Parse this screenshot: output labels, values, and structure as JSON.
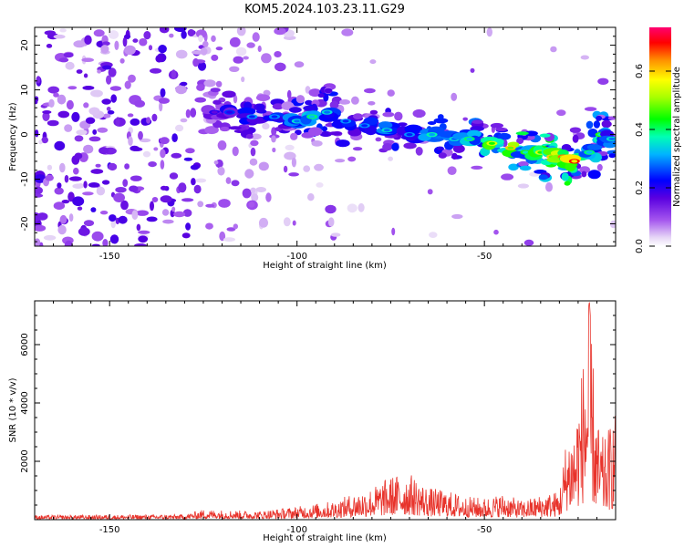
{
  "title": "KOM5.2024.103.23.11.G29",
  "colors": {
    "snr_line": "#e8332b",
    "frame": "#000000"
  },
  "chart_data": [
    {
      "type": "heatmap",
      "xlabel": "Height of straight line (km)",
      "ylabel": "Frequency (Hz)",
      "xlim": [
        -170,
        -15
      ],
      "ylim": [
        -25,
        24
      ],
      "xticks": [
        -150,
        -100,
        -50
      ],
      "yticks": [
        -20,
        -10,
        0,
        10,
        20
      ],
      "colorbar": {
        "label": "Normalized spectral amplitude",
        "range": [
          0,
          0.75
        ],
        "ticks": [
          0.0,
          0.2,
          0.4,
          0.6
        ],
        "colormap": "rainbow (white-violet-blue-cyan-green-yellow-red)"
      },
      "ridge": [
        {
          "x": -122,
          "f": 5,
          "amp": 0.2
        },
        {
          "x": -118,
          "f": 5,
          "amp": 0.25
        },
        {
          "x": -112,
          "f": 4,
          "amp": 0.3
        },
        {
          "x": -106,
          "f": 4,
          "amp": 0.3
        },
        {
          "x": -100,
          "f": 3,
          "amp": 0.35
        },
        {
          "x": -96,
          "f": 4,
          "amp": 0.4
        },
        {
          "x": -92,
          "f": 5,
          "amp": 0.35
        },
        {
          "x": -87,
          "f": 3,
          "amp": 0.3
        },
        {
          "x": -82,
          "f": 2,
          "amp": 0.3
        },
        {
          "x": -76,
          "f": 1,
          "amp": 0.35
        },
        {
          "x": -70,
          "f": 0,
          "amp": 0.3
        },
        {
          "x": -64,
          "f": 0,
          "amp": 0.38
        },
        {
          "x": -58,
          "f": -1,
          "amp": 0.35
        },
        {
          "x": -54,
          "f": -1,
          "amp": 0.4
        },
        {
          "x": -48,
          "f": -2,
          "amp": 0.55
        },
        {
          "x": -43,
          "f": -3,
          "amp": 0.6
        },
        {
          "x": -39,
          "f": -4,
          "amp": 0.45
        },
        {
          "x": -35,
          "f": -4,
          "amp": 0.55
        },
        {
          "x": -32,
          "f": -5,
          "amp": 0.6
        },
        {
          "x": -29,
          "f": -5,
          "amp": 0.65
        },
        {
          "x": -26,
          "f": -6,
          "amp": 0.7
        },
        {
          "x": -22,
          "f": -4,
          "amp": 0.4
        },
        {
          "x": -19,
          "f": 0,
          "amp": 0.45
        },
        {
          "x": -16,
          "f": -1,
          "amp": 0.35
        }
      ]
    },
    {
      "type": "line",
      "xlabel": "Height of straight line (km)",
      "ylabel": "SNR (10 * v/v)",
      "xlim": [
        -170,
        -15
      ],
      "ylim": [
        0,
        7500
      ],
      "xticks": [
        -150,
        -100,
        -50
      ],
      "yticks": [
        2000,
        4000,
        6000
      ],
      "envelope": {
        "x": [
          -170,
          -130,
          -125,
          -110,
          -100,
          -90,
          -85,
          -80,
          -75,
          -70,
          -65,
          -60,
          -55,
          -50,
          -45,
          -40,
          -35,
          -30,
          -28,
          -26,
          -24,
          -22,
          -20,
          -18,
          -16,
          -15
        ],
        "y": [
          150,
          180,
          350,
          300,
          450,
          650,
          900,
          1100,
          1500,
          1600,
          1100,
          1000,
          800,
          750,
          900,
          650,
          850,
          1000,
          3000,
          3300,
          5200,
          7500,
          3400,
          2700,
          3500,
          3800
        ]
      }
    }
  ]
}
